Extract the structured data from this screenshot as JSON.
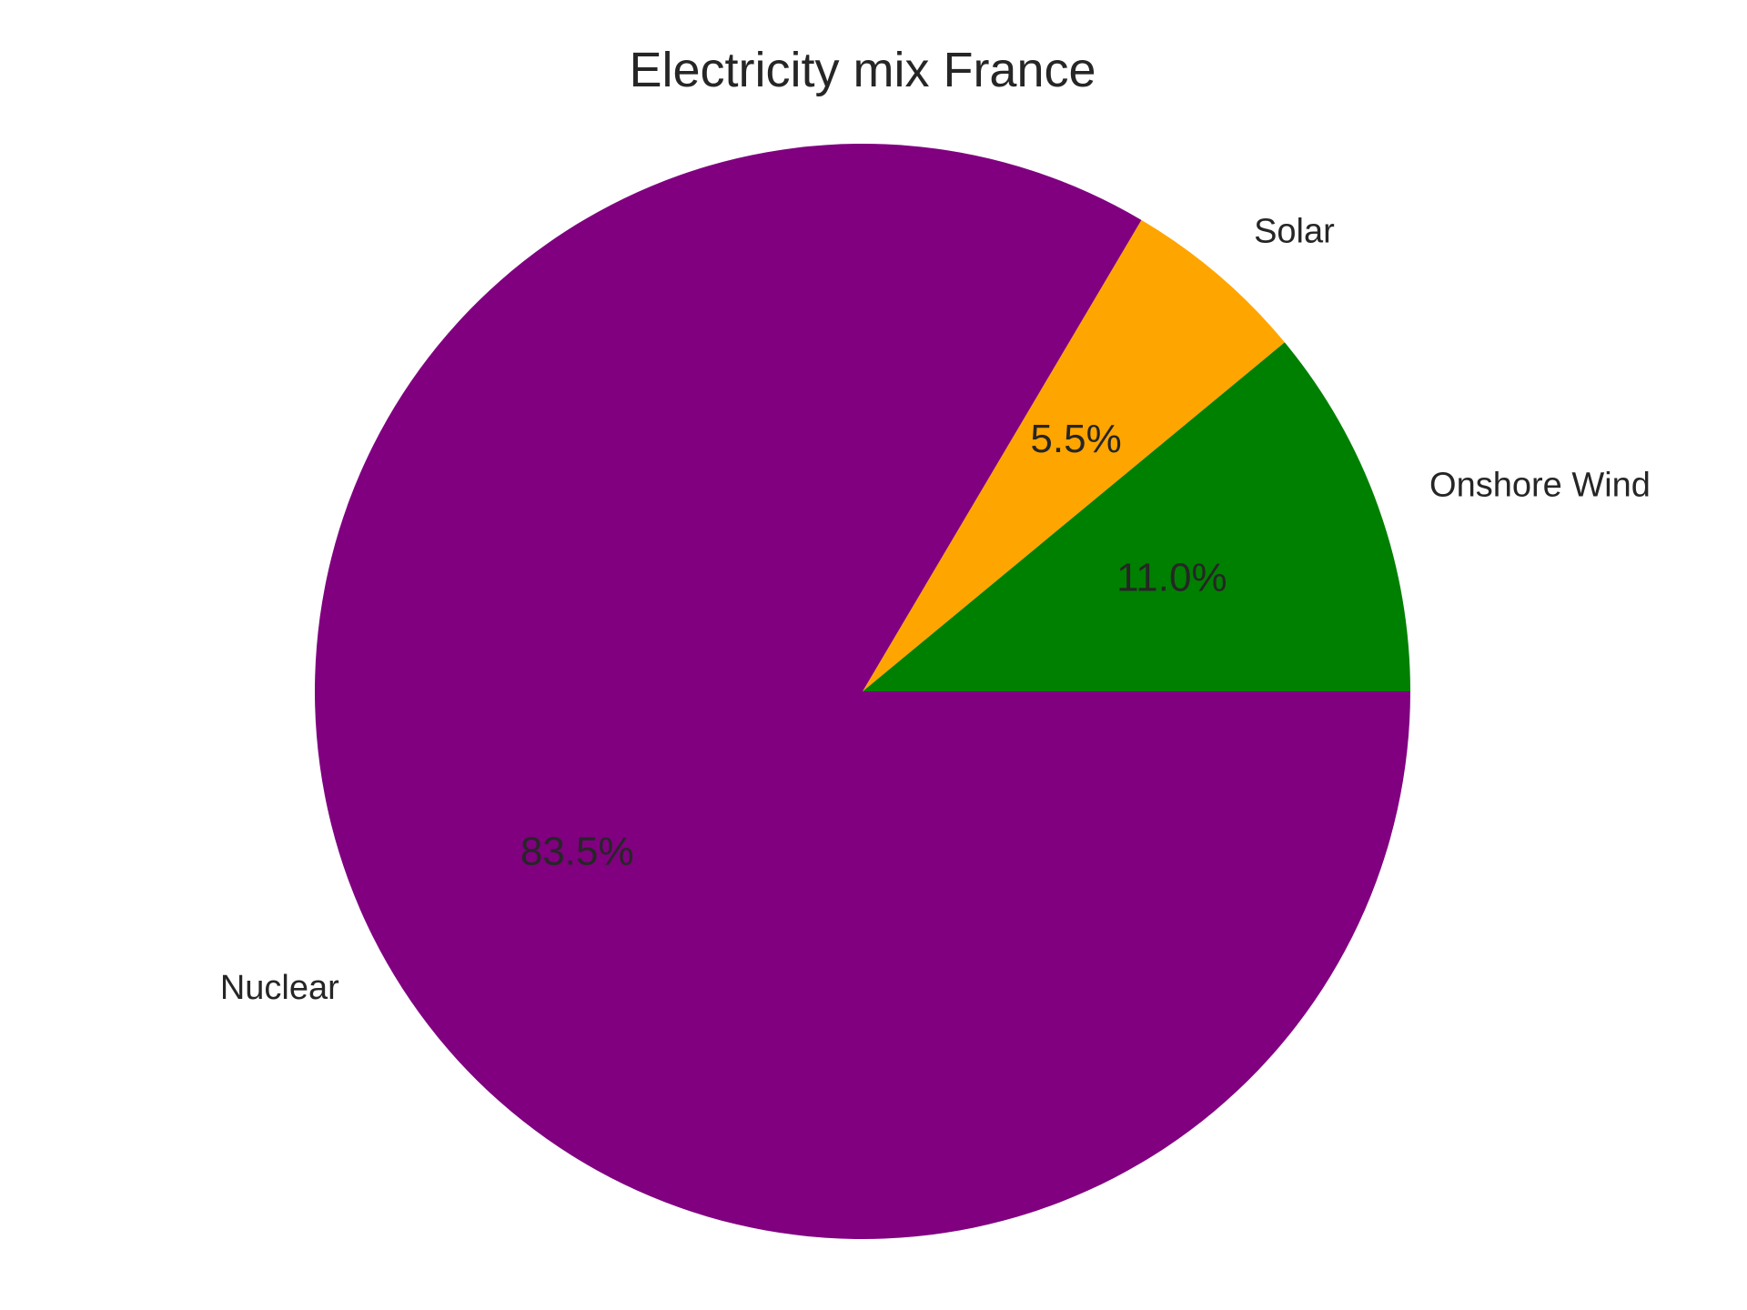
{
  "chart_data": {
    "type": "pie",
    "title": "Electricity mix France",
    "start_angle_deg": 0,
    "direction": "counterclockwise",
    "slices": [
      {
        "label": "Onshore Wind",
        "value": 11.0,
        "percent_label": "11.0%",
        "color": "#008000"
      },
      {
        "label": "Solar",
        "value": 5.5,
        "percent_label": "5.5%",
        "color": "#FFA500"
      },
      {
        "label": "Nuclear",
        "value": 83.5,
        "percent_label": "83.5%",
        "color": "#800080"
      }
    ]
  }
}
